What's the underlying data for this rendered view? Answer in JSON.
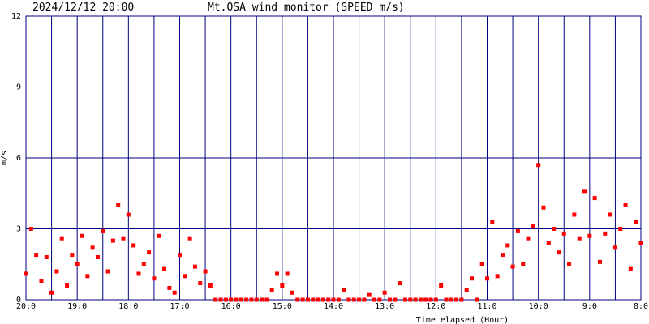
{
  "chart_data": {
    "type": "scatter",
    "timestamp": "2024/12/12 20:00",
    "title": "Mt.OSA wind monitor (SPEED m/s)",
    "y_label": "m/s",
    "x_label": "Time elapsed (Hour)",
    "color": "#ff0000",
    "grid_color": "#000080",
    "grid": true,
    "xlim": [
      0,
      12
    ],
    "ylim": [
      0,
      12
    ],
    "yticks": [
      0,
      3,
      6,
      9,
      12
    ],
    "xticks": [
      {
        "value": 0,
        "label": "20:0"
      },
      {
        "value": 1,
        "label": "19:0"
      },
      {
        "value": 2,
        "label": "18:0"
      },
      {
        "value": 3,
        "label": "17:0"
      },
      {
        "value": 4,
        "label": "16:0"
      },
      {
        "value": 5,
        "label": "15:0"
      },
      {
        "value": 6,
        "label": "14:0"
      },
      {
        "value": 7,
        "label": "13:0"
      },
      {
        "value": 8,
        "label": "12:0"
      },
      {
        "value": 9,
        "label": "11:0"
      },
      {
        "value": 10,
        "label": "10:0"
      },
      {
        "value": 11,
        "label": "9:0"
      },
      {
        "value": 12,
        "label": "8:0"
      }
    ],
    "xminor": [
      0.5,
      1.5,
      2.5,
      3.5,
      4.5,
      5.5,
      6.5,
      7.5,
      8.5,
      9.5,
      10.5,
      11.5
    ],
    "series": [
      {
        "name": "SPEED",
        "x": [
          0,
          0.1,
          0.2,
          0.3,
          0.4,
          0.5,
          0.6,
          0.7,
          0.8,
          0.9,
          1,
          1.1,
          1.2,
          1.3,
          1.4,
          1.5,
          1.6,
          1.7,
          1.8,
          1.9,
          2,
          2.1,
          2.2,
          2.3,
          2.4,
          2.5,
          2.6,
          2.7,
          2.8,
          2.9,
          3,
          3.1,
          3.2,
          3.3,
          3.4,
          3.5,
          3.6,
          3.7,
          3.8,
          3.9,
          4,
          4.1,
          4.2,
          4.3,
          4.4,
          4.5,
          4.6,
          4.7,
          4.8,
          4.9,
          5,
          5.1,
          5.2,
          5.3,
          5.4,
          5.5,
          5.6,
          5.7,
          5.8,
          5.9,
          6,
          6.1,
          6.2,
          6.3,
          6.4,
          6.5,
          6.6,
          6.7,
          6.8,
          6.9,
          7,
          7.1,
          7.2,
          7.3,
          7.4,
          7.5,
          7.6,
          7.7,
          7.8,
          7.9,
          8,
          8.1,
          8.2,
          8.3,
          8.4,
          8.5,
          8.6,
          8.7,
          8.8,
          8.9,
          9,
          9.1,
          9.2,
          9.3,
          9.4,
          9.5,
          9.6,
          9.7,
          9.8,
          9.9,
          10,
          10.1,
          10.2,
          10.3,
          10.4,
          10.5,
          10.6,
          10.7,
          10.8,
          10.9,
          11,
          11.1,
          11.2,
          11.3,
          11.4,
          11.5,
          11.6,
          11.7,
          11.8,
          11.9,
          12
        ],
        "values": [
          1.1,
          3.0,
          1.9,
          0.8,
          1.8,
          0.3,
          1.2,
          2.6,
          0.6,
          1.9,
          1.5,
          2.7,
          1.0,
          2.2,
          1.8,
          2.9,
          1.2,
          2.5,
          4.0,
          2.6,
          3.6,
          2.3,
          1.1,
          1.5,
          2.0,
          0.9,
          2.7,
          1.3,
          0.5,
          0.3,
          1.9,
          1.0,
          2.6,
          1.4,
          0.7,
          1.2,
          0.6,
          0,
          0,
          0,
          0,
          0,
          0,
          0,
          0,
          0,
          0,
          0,
          0.4,
          1.1,
          0.6,
          1.1,
          0.3,
          0,
          0,
          0,
          0,
          0,
          0,
          0,
          0,
          0,
          0.4,
          0,
          0,
          0,
          0,
          0.2,
          0,
          0,
          0.3,
          0,
          0,
          0.7,
          0,
          0,
          0,
          0,
          0,
          0,
          0,
          0.6,
          0,
          0,
          0,
          0,
          0.4,
          0.9,
          0,
          1.5,
          0.9,
          3.3,
          1.0,
          1.9,
          2.3,
          1.4,
          2.9,
          1.5,
          2.6,
          3.1,
          5.7,
          3.9,
          2.4,
          3.0,
          2.0,
          2.8,
          1.5,
          3.6,
          2.6,
          4.6,
          2.7,
          4.3,
          1.6,
          2.8,
          3.6,
          2.2,
          3.0,
          4.0,
          1.3,
          3.3,
          2.4
        ]
      }
    ]
  }
}
